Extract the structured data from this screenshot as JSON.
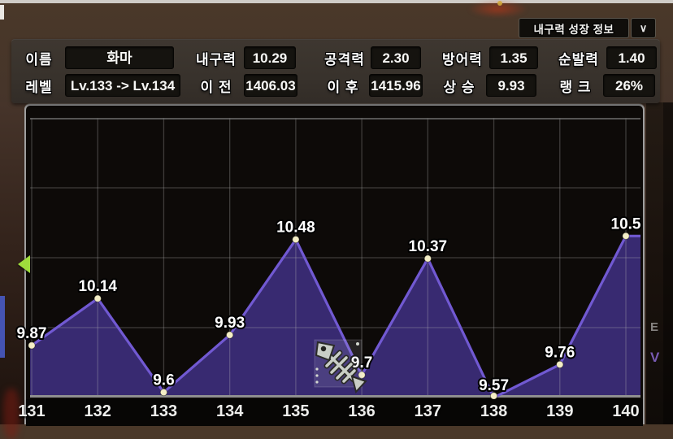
{
  "header": {
    "dropdown": {
      "label": "내구력 성장 정보",
      "chevron": "∨"
    }
  },
  "stats": {
    "rows": [
      {
        "cells": [
          {
            "label": "이름",
            "value": "화마"
          },
          {
            "label": "내구력",
            "value": "10.29"
          },
          {
            "label": "공격력",
            "value": "2.30"
          },
          {
            "label": "방어력",
            "value": "1.35"
          },
          {
            "label": "순발력",
            "value": "1.40"
          }
        ]
      },
      {
        "cells": [
          {
            "label": "레벨",
            "value": "Lv.133 -> Lv.134"
          },
          {
            "label": "이 전",
            "value": "1406.03"
          },
          {
            "label": "이 후",
            "value": "1415.96"
          },
          {
            "label": "상 승",
            "value": "9.93"
          },
          {
            "label": "랭 크",
            "value": "26%"
          }
        ]
      }
    ]
  },
  "chart_data": {
    "type": "area",
    "title": "내구력 성장 정보",
    "x": [
      131,
      132,
      133,
      134,
      135,
      136,
      137,
      138,
      139,
      140
    ],
    "values": [
      9.87,
      10.14,
      9.6,
      9.93,
      10.48,
      9.7,
      10.37,
      9.57,
      9.76,
      10.5
    ],
    "point_labels": [
      "9.87",
      "10.14",
      "9.6",
      "9.93",
      "10.48",
      "9.7",
      "10.37",
      "9.57",
      "9.76",
      "10.5"
    ],
    "ylim": [
      9.57,
      11.18
    ],
    "grid": true,
    "legend": false,
    "colors": {
      "fill": "#3c2d78",
      "line": "#7159d2",
      "dot": "#f4eec6",
      "grid": "rgba(190,190,190,0.28)",
      "axis": "#8f8f8f",
      "marker_green": "#9fdd3c",
      "frame_silver": "#9f9f9f"
    }
  },
  "overlays": {
    "cursor_icon": "fish-skeleton",
    "marker_icon": "green-left-arrow"
  },
  "background": {
    "fragment_e": "E",
    "fragment_v": "V"
  }
}
